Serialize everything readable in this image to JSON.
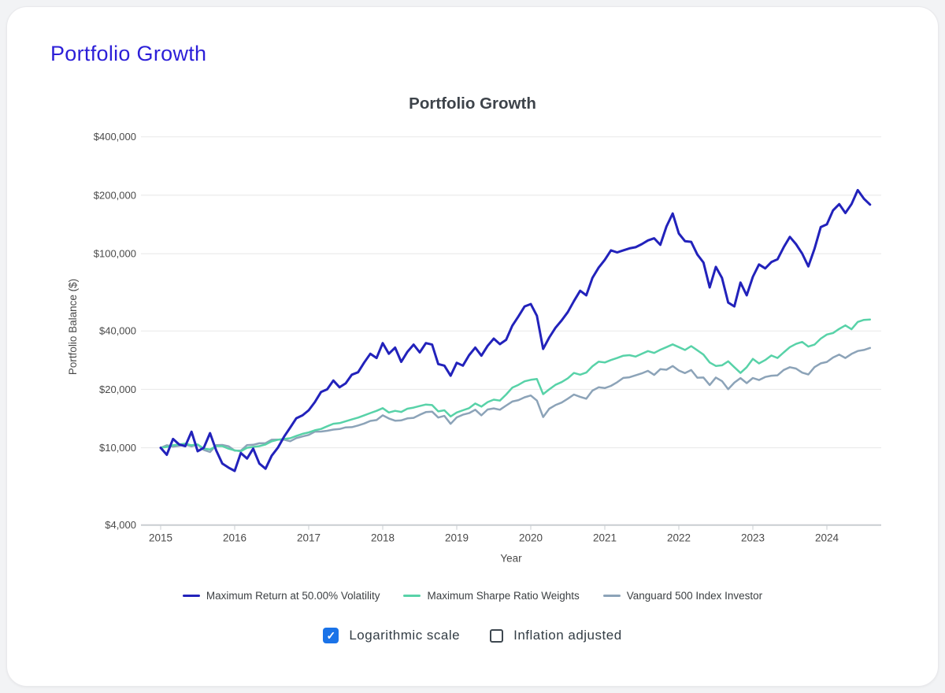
{
  "page": {
    "title": "Portfolio Growth"
  },
  "chart": {
    "title": "Portfolio Growth",
    "x_axis_label": "Year",
    "y_axis_label": "Portfolio Balance ($)",
    "y_ticks": [
      {
        "label": "$400,000",
        "value": 400000
      },
      {
        "label": "$200,000",
        "value": 200000
      },
      {
        "label": "$100,000",
        "value": 100000
      },
      {
        "label": "$40,000",
        "value": 40000
      },
      {
        "label": "$20,000",
        "value": 20000
      },
      {
        "label": "$10,000",
        "value": 10000
      },
      {
        "label": "$4,000",
        "value": 4000
      }
    ],
    "x_ticks": [
      "2015",
      "2016",
      "2017",
      "2018",
      "2019",
      "2020",
      "2021",
      "2022",
      "2023",
      "2024"
    ]
  },
  "chart_data": {
    "type": "line",
    "title": "Portfolio Growth",
    "xlabel": "Year",
    "ylabel": "Portfolio Balance ($)",
    "log_scale": true,
    "ylim": [
      4000,
      400000
    ],
    "legend_position": "bottom",
    "x_unit": "month",
    "x_start": "2015-01",
    "x_end": "2024-08",
    "series": [
      {
        "name": "Maximum Return at 50.00% Volatility",
        "color": "#2222bb",
        "values": [
          10000,
          9200,
          11100,
          10400,
          10200,
          12100,
          9600,
          10000,
          11900,
          9700,
          8300,
          7900,
          7600,
          9400,
          8800,
          9900,
          8300,
          7800,
          9100,
          10000,
          11400,
          12700,
          14200,
          14700,
          15600,
          17200,
          19400,
          20000,
          22200,
          20500,
          21500,
          23800,
          24500,
          27500,
          30500,
          29000,
          34600,
          30500,
          32800,
          27700,
          31200,
          34000,
          31000,
          34600,
          34000,
          27000,
          26500,
          23500,
          27400,
          26500,
          30000,
          32800,
          29800,
          33500,
          36500,
          34200,
          36000,
          42500,
          47500,
          53500,
          55000,
          47800,
          32300,
          37000,
          41500,
          45300,
          50000,
          57000,
          64400,
          61000,
          75000,
          84800,
          93000,
          104000,
          101500,
          104000,
          106500,
          108000,
          112000,
          117000,
          120000,
          111000,
          138000,
          161000,
          127000,
          116000,
          115000,
          99000,
          90000,
          67000,
          85500,
          75000,
          56000,
          53500,
          71000,
          61000,
          76000,
          88000,
          84000,
          90500,
          93500,
          108000,
          122000,
          112000,
          100000,
          86000,
          106000,
          137000,
          141500,
          167000,
          180000,
          162000,
          180000,
          212500,
          192000,
          179000
        ]
      },
      {
        "name": "Maximum Sharpe Ratio Weights",
        "color": "#58d2a8",
        "values": [
          10000,
          10100,
          10300,
          10400,
          10500,
          10300,
          10400,
          9900,
          9800,
          10200,
          10200,
          9900,
          9700,
          9600,
          10000,
          10100,
          10200,
          10400,
          10800,
          11000,
          11100,
          11200,
          11500,
          11800,
          12000,
          12300,
          12500,
          12900,
          13300,
          13400,
          13700,
          14000,
          14300,
          14700,
          15100,
          15500,
          16000,
          15200,
          15500,
          15300,
          15900,
          16100,
          16400,
          16700,
          16600,
          15400,
          15600,
          14500,
          15200,
          15600,
          16000,
          16900,
          16300,
          17200,
          17700,
          17500,
          18800,
          20400,
          21100,
          22000,
          22400,
          22600,
          18900,
          20000,
          21100,
          21800,
          22800,
          24300,
          23800,
          24400,
          26300,
          27800,
          27500,
          28300,
          29000,
          29800,
          30000,
          29500,
          30500,
          31500,
          30800,
          32000,
          33000,
          34100,
          33000,
          31900,
          33400,
          31800,
          30200,
          27500,
          26400,
          26600,
          27900,
          26000,
          24300,
          26000,
          28700,
          27200,
          28300,
          29900,
          29000,
          31000,
          33000,
          34300,
          35100,
          33200,
          34000,
          36500,
          38300,
          39000,
          41000,
          42700,
          40800,
          44500,
          45600,
          45800
        ]
      },
      {
        "name": "Vanguard 500 Index Investor",
        "color": "#8ca3b8",
        "values": [
          10000,
          10300,
          10140,
          10240,
          10370,
          10170,
          10380,
          9750,
          9510,
          10310,
          10340,
          10180,
          9670,
          9660,
          10320,
          10360,
          10550,
          10570,
          11000,
          11010,
          11010,
          10810,
          11220,
          11440,
          11650,
          12110,
          12120,
          12240,
          12410,
          12490,
          12740,
          12770,
          13030,
          13340,
          13750,
          13900,
          14690,
          14150,
          13790,
          13840,
          14170,
          14260,
          14790,
          15270,
          15360,
          14310,
          14600,
          13280,
          14340,
          14800,
          15090,
          15700,
          14700,
          15740,
          15960,
          15700,
          16500,
          17300,
          17600,
          18200,
          18600,
          17500,
          14400,
          15900,
          16600,
          17100,
          17900,
          18800,
          18300,
          17900,
          19700,
          20500,
          20300,
          20840,
          21750,
          22910,
          23070,
          23610,
          24170,
          24900,
          23740,
          25410,
          25230,
          26360,
          25000,
          24250,
          25150,
          22960,
          23000,
          21060,
          23000,
          22060,
          20030,
          21650,
          22860,
          21540,
          22890,
          22330,
          23150,
          23510,
          23610,
          25170,
          26010,
          25600,
          24370,
          23860,
          26040,
          27220,
          27680,
          29160,
          30210,
          29000,
          30440,
          31530,
          31900,
          32680
        ]
      }
    ]
  },
  "controls": {
    "log_label": "Logarithmic scale",
    "log_checked": true,
    "inflation_label": "Inflation adjusted",
    "inflation_checked": false,
    "check_glyph": "✓"
  },
  "colors": {
    "page_title": "#2c1fd8",
    "chart_title": "#3d434a",
    "gridline": "#e8e8e8",
    "axis_line": "#c9cdd1",
    "tick_label": "#4a4a4a",
    "checkbox_checked": "#1a73e8"
  }
}
